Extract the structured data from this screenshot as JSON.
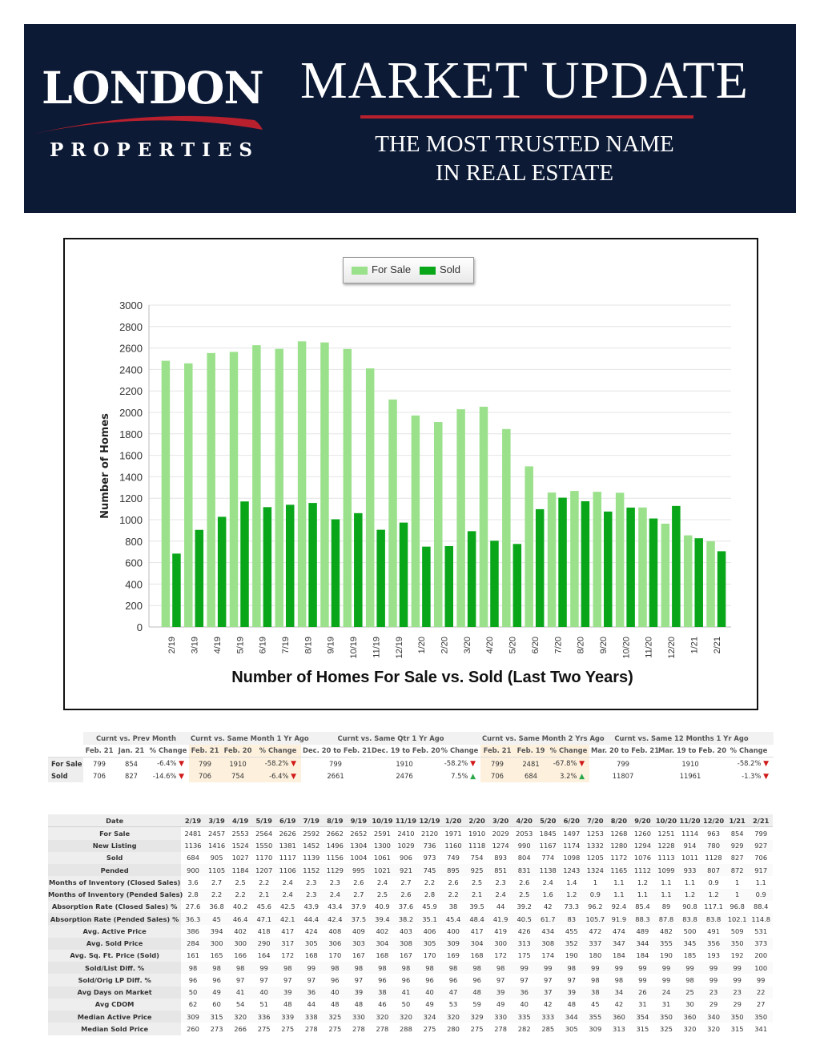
{
  "header": {
    "logo_top": "LONDON",
    "logo_bottom": "PROPERTIES",
    "title": "MARKET UPDATE",
    "tagline_line1": "THE MOST TRUSTED NAME",
    "tagline_line2": "IN REAL ESTATE",
    "colors": {
      "navy": "#0c1a35",
      "accent_red": "#b8202e",
      "text": "#ffffff"
    }
  },
  "chart_data": {
    "type": "bar",
    "title": "Number of Homes For Sale vs. Sold (Last Two Years)",
    "xlabel": "",
    "ylabel": "Number of Homes",
    "ylim": [
      0,
      3000
    ],
    "yticks": [
      0,
      200,
      400,
      600,
      800,
      1000,
      1200,
      1400,
      1600,
      1800,
      2000,
      2200,
      2400,
      2600,
      2800,
      3000
    ],
    "grid": true,
    "legend_position": "top-center",
    "categories": [
      "2/19",
      "3/19",
      "4/19",
      "5/19",
      "6/19",
      "7/19",
      "8/19",
      "9/19",
      "10/19",
      "11/19",
      "12/19",
      "1/20",
      "2/20",
      "3/20",
      "4/20",
      "5/20",
      "6/20",
      "7/20",
      "8/20",
      "9/20",
      "10/20",
      "11/20",
      "12/20",
      "1/21",
      "2/21"
    ],
    "series": [
      {
        "name": "For Sale",
        "color": "#9be18c",
        "values": [
          2481,
          2457,
          2553,
          2564,
          2626,
          2592,
          2662,
          2652,
          2591,
          2410,
          2120,
          1971,
          1910,
          2029,
          2053,
          1845,
          1497,
          1253,
          1268,
          1260,
          1251,
          1114,
          963,
          854,
          799
        ]
      },
      {
        "name": "Sold",
        "color": "#0aa61a",
        "values": [
          684,
          905,
          1027,
          1170,
          1117,
          1139,
          1156,
          1004,
          1061,
          906,
          973,
          749,
          754,
          893,
          804,
          774,
          1098,
          1205,
          1172,
          1076,
          1113,
          1011,
          1128,
          827,
          706
        ]
      }
    ]
  },
  "comparison": {
    "groups": [
      "Curnt vs. Prev Month",
      "Curnt vs. Same Month 1 Yr Ago",
      "Curnt vs. Same Qtr 1 Yr Ago",
      "Curnt vs. Same Month 2 Yrs Ago",
      "Curnt vs. Same 12 Months 1 Yr Ago"
    ],
    "subheaders": [
      "Feb. 21",
      "Jan. 21",
      "% Change",
      "Feb. 21",
      "Feb. 20",
      "% Change",
      "Dec. 20 to Feb. 21",
      "Dec. 19 to Feb. 20",
      "% Change",
      "Feb. 21",
      "Feb. 19",
      "% Change",
      "Mar. 20 to Feb. 21",
      "Mar. 19 to Feb. 20",
      "% Change"
    ],
    "rows": [
      {
        "label": "For Sale",
        "cells": [
          "799",
          "854",
          "-6.4%",
          "799",
          "1910",
          "-58.2%",
          "799",
          "1910",
          "-58.2%",
          "799",
          "2481",
          "-67.8%",
          "799",
          "1910",
          "-58.2%"
        ],
        "dirs": [
          "down",
          "down",
          "down",
          "down",
          "down"
        ]
      },
      {
        "label": "Sold",
        "cells": [
          "706",
          "827",
          "-14.6%",
          "706",
          "754",
          "-6.4%",
          "2661",
          "2476",
          "7.5%",
          "706",
          "684",
          "3.2%",
          "11807",
          "11961",
          "-1.3%"
        ],
        "dirs": [
          "down",
          "down",
          "up",
          "up",
          "down"
        ]
      }
    ]
  },
  "monthly": {
    "date_label": "Date",
    "columns": [
      "2/19",
      "3/19",
      "4/19",
      "5/19",
      "6/19",
      "7/19",
      "8/19",
      "9/19",
      "10/19",
      "11/19",
      "12/19",
      "1/20",
      "2/20",
      "3/20",
      "4/20",
      "5/20",
      "6/20",
      "7/20",
      "8/20",
      "9/20",
      "10/20",
      "11/20",
      "12/20",
      "1/21",
      "2/21"
    ],
    "rows": [
      {
        "label": "For Sale",
        "values": [
          "2481",
          "2457",
          "2553",
          "2564",
          "2626",
          "2592",
          "2662",
          "2652",
          "2591",
          "2410",
          "2120",
          "1971",
          "1910",
          "2029",
          "2053",
          "1845",
          "1497",
          "1253",
          "1268",
          "1260",
          "1251",
          "1114",
          "963",
          "854",
          "799"
        ]
      },
      {
        "label": "New Listing",
        "values": [
          "1136",
          "1416",
          "1524",
          "1550",
          "1381",
          "1452",
          "1496",
          "1304",
          "1300",
          "1029",
          "736",
          "1160",
          "1118",
          "1274",
          "990",
          "1167",
          "1174",
          "1332",
          "1280",
          "1294",
          "1228",
          "914",
          "780",
          "929",
          "927"
        ]
      },
      {
        "label": "Sold",
        "values": [
          "684",
          "905",
          "1027",
          "1170",
          "1117",
          "1139",
          "1156",
          "1004",
          "1061",
          "906",
          "973",
          "749",
          "754",
          "893",
          "804",
          "774",
          "1098",
          "1205",
          "1172",
          "1076",
          "1113",
          "1011",
          "1128",
          "827",
          "706"
        ]
      },
      {
        "label": "Pended",
        "values": [
          "900",
          "1105",
          "1184",
          "1207",
          "1106",
          "1152",
          "1129",
          "995",
          "1021",
          "921",
          "745",
          "895",
          "925",
          "851",
          "831",
          "1138",
          "1243",
          "1324",
          "1165",
          "1112",
          "1099",
          "933",
          "807",
          "872",
          "917"
        ]
      },
      {
        "label": "Months of Inventory (Closed Sales)",
        "values": [
          "3.6",
          "2.7",
          "2.5",
          "2.2",
          "2.4",
          "2.3",
          "2.3",
          "2.6",
          "2.4",
          "2.7",
          "2.2",
          "2.6",
          "2.5",
          "2.3",
          "2.6",
          "2.4",
          "1.4",
          "1",
          "1.1",
          "1.2",
          "1.1",
          "1.1",
          "0.9",
          "1",
          "1.1"
        ]
      },
      {
        "label": "Months of Inventory (Pended Sales)",
        "values": [
          "2.8",
          "2.2",
          "2.2",
          "2.1",
          "2.4",
          "2.3",
          "2.4",
          "2.7",
          "2.5",
          "2.6",
          "2.8",
          "2.2",
          "2.1",
          "2.4",
          "2.5",
          "1.6",
          "1.2",
          "0.9",
          "1.1",
          "1.1",
          "1.1",
          "1.2",
          "1.2",
          "1",
          "0.9"
        ]
      },
      {
        "label": "Absorption Rate (Closed Sales) %",
        "values": [
          "27.6",
          "36.8",
          "40.2",
          "45.6",
          "42.5",
          "43.9",
          "43.4",
          "37.9",
          "40.9",
          "37.6",
          "45.9",
          "38",
          "39.5",
          "44",
          "39.2",
          "42",
          "73.3",
          "96.2",
          "92.4",
          "85.4",
          "89",
          "90.8",
          "117.1",
          "96.8",
          "88.4"
        ]
      },
      {
        "label": "Absorption Rate (Pended Sales) %",
        "values": [
          "36.3",
          "45",
          "46.4",
          "47.1",
          "42.1",
          "44.4",
          "42.4",
          "37.5",
          "39.4",
          "38.2",
          "35.1",
          "45.4",
          "48.4",
          "41.9",
          "40.5",
          "61.7",
          "83",
          "105.7",
          "91.9",
          "88.3",
          "87.8",
          "83.8",
          "83.8",
          "102.1",
          "114.8"
        ]
      },
      {
        "label": "Avg. Active Price",
        "values": [
          "386",
          "394",
          "402",
          "418",
          "417",
          "424",
          "408",
          "409",
          "402",
          "403",
          "406",
          "400",
          "417",
          "419",
          "426",
          "434",
          "455",
          "472",
          "474",
          "489",
          "482",
          "500",
          "491",
          "509",
          "531"
        ]
      },
      {
        "label": "Avg. Sold Price",
        "values": [
          "284",
          "300",
          "300",
          "290",
          "317",
          "305",
          "306",
          "303",
          "304",
          "308",
          "305",
          "309",
          "304",
          "300",
          "313",
          "308",
          "352",
          "337",
          "347",
          "344",
          "355",
          "345",
          "356",
          "350",
          "373"
        ]
      },
      {
        "label": "Avg. Sq. Ft. Price (Sold)",
        "values": [
          "161",
          "165",
          "166",
          "164",
          "172",
          "168",
          "170",
          "167",
          "168",
          "167",
          "170",
          "169",
          "168",
          "172",
          "175",
          "174",
          "190",
          "180",
          "184",
          "184",
          "190",
          "185",
          "193",
          "192",
          "200"
        ]
      },
      {
        "label": "Sold/List Diff. %",
        "values": [
          "98",
          "98",
          "98",
          "99",
          "98",
          "99",
          "98",
          "98",
          "98",
          "98",
          "98",
          "98",
          "98",
          "98",
          "99",
          "99",
          "98",
          "99",
          "99",
          "99",
          "99",
          "99",
          "99",
          "99",
          "100"
        ]
      },
      {
        "label": "Sold/Orig LP Diff. %",
        "values": [
          "96",
          "96",
          "97",
          "97",
          "97",
          "97",
          "96",
          "97",
          "96",
          "96",
          "96",
          "96",
          "96",
          "97",
          "97",
          "97",
          "97",
          "98",
          "98",
          "99",
          "99",
          "98",
          "99",
          "99",
          "99"
        ]
      },
      {
        "label": "Avg Days on Market",
        "values": [
          "50",
          "49",
          "41",
          "40",
          "39",
          "36",
          "40",
          "39",
          "38",
          "41",
          "40",
          "47",
          "48",
          "39",
          "36",
          "37",
          "39",
          "38",
          "34",
          "26",
          "24",
          "25",
          "23",
          "23",
          "22"
        ]
      },
      {
        "label": "Avg CDOM",
        "values": [
          "62",
          "60",
          "54",
          "51",
          "48",
          "44",
          "48",
          "48",
          "46",
          "50",
          "49",
          "53",
          "59",
          "49",
          "40",
          "42",
          "48",
          "45",
          "42",
          "31",
          "31",
          "30",
          "29",
          "29",
          "27"
        ]
      },
      {
        "label": "Median Active Price",
        "values": [
          "309",
          "315",
          "320",
          "336",
          "339",
          "338",
          "325",
          "330",
          "320",
          "320",
          "324",
          "320",
          "329",
          "330",
          "335",
          "333",
          "344",
          "355",
          "360",
          "354",
          "350",
          "360",
          "340",
          "350",
          "350"
        ]
      },
      {
        "label": "Median Sold Price",
        "values": [
          "260",
          "273",
          "266",
          "275",
          "275",
          "278",
          "275",
          "278",
          "278",
          "288",
          "275",
          "280",
          "275",
          "278",
          "282",
          "285",
          "305",
          "309",
          "313",
          "315",
          "325",
          "320",
          "320",
          "315",
          "341"
        ]
      }
    ]
  }
}
